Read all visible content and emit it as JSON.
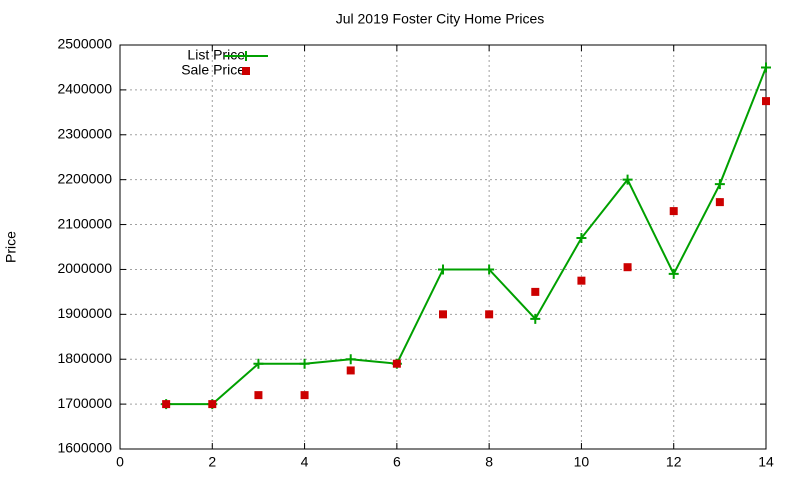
{
  "chart_data": {
    "type": "line",
    "title": "Jul 2019 Foster City Home Prices",
    "y_label": "Price",
    "x": [
      1,
      2,
      3,
      4,
      5,
      6,
      7,
      8,
      9,
      10,
      11,
      12,
      13,
      14
    ],
    "series": [
      {
        "name": "List Price",
        "color": "#00a000",
        "style": "linespoints",
        "values": [
          1700000,
          1700000,
          1790000,
          1790000,
          1800000,
          1790000,
          2000000,
          2000000,
          1890000,
          2070000,
          2200000,
          1990000,
          2190000,
          2450000
        ]
      },
      {
        "name": "Sale Price",
        "color": "#cc0000",
        "style": "points",
        "values": [
          1700000,
          1700000,
          1720000,
          1720000,
          1775000,
          1790000,
          1900000,
          1900000,
          1950000,
          1975000,
          2005000,
          2130000,
          2150000,
          2375000
        ]
      }
    ],
    "xlim": [
      0,
      14
    ],
    "xticks": [
      0,
      2,
      4,
      6,
      8,
      10,
      12,
      14
    ],
    "ylim": [
      1600000,
      2500000
    ],
    "yticks": [
      1600000,
      1700000,
      1800000,
      1900000,
      2000000,
      2100000,
      2200000,
      2300000,
      2400000,
      2500000
    ],
    "grid": true,
    "legend": "top-left"
  }
}
